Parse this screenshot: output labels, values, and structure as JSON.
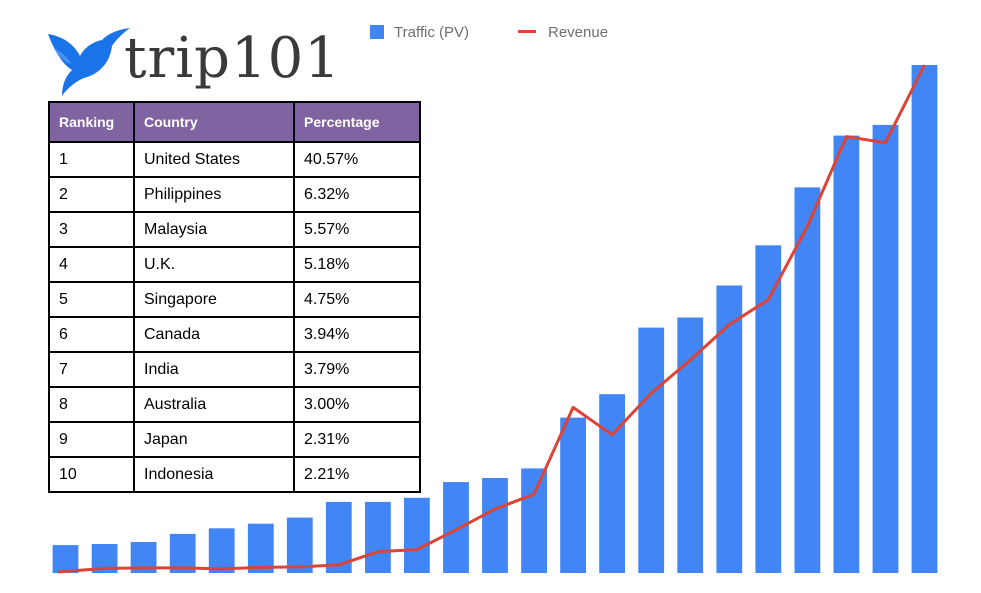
{
  "logo": {
    "text": "trip101",
    "icon": "bird-logo-icon",
    "color": "#1a73e8"
  },
  "legend": {
    "traffic_label": "Traffic (PV)",
    "revenue_label": "Revenue"
  },
  "table": {
    "headers": [
      "Ranking",
      "Country",
      "Percentage"
    ],
    "rows": [
      [
        "1",
        "United States",
        "40.57%"
      ],
      [
        "2",
        "Philippines",
        "6.32%"
      ],
      [
        "3",
        "Malaysia",
        "5.57%"
      ],
      [
        "4",
        "U.K.",
        "5.18%"
      ],
      [
        "5",
        "Singapore",
        "4.75%"
      ],
      [
        "6",
        "Canada",
        "3.94%"
      ],
      [
        "7",
        "India",
        "3.79%"
      ],
      [
        "8",
        "Australia",
        "3.00%"
      ],
      [
        "9",
        "Japan",
        "2.31%"
      ],
      [
        "10",
        "Indonesia",
        "2.21%"
      ]
    ]
  },
  "chart_data": {
    "type": "bar",
    "title": "",
    "xlabel": "",
    "ylabel": "",
    "grid": false,
    "legend_position": "top",
    "ylim": [
      0,
      100
    ],
    "colors": {
      "traffic": "#4285f4",
      "revenue": "#db4437"
    },
    "series": [
      {
        "name": "Traffic (PV)",
        "type": "bar",
        "values": [
          5.5,
          5.7,
          6.1,
          7.7,
          8.8,
          9.7,
          10.9,
          14.0,
          14.0,
          14.8,
          17.9,
          18.7,
          20.6,
          30.6,
          35.2,
          48.3,
          50.3,
          56.6,
          64.5,
          75.9,
          86.1,
          88.2,
          100
        ]
      },
      {
        "name": "Revenue",
        "type": "line",
        "values": [
          0.2,
          0.9,
          1.0,
          1.0,
          0.8,
          1.1,
          1.2,
          1.6,
          4.2,
          4.6,
          8.5,
          12.6,
          15.5,
          32.6,
          27.2,
          35.4,
          41.9,
          48.9,
          53.8,
          68.2,
          85.9,
          84.7,
          100
        ]
      }
    ]
  }
}
